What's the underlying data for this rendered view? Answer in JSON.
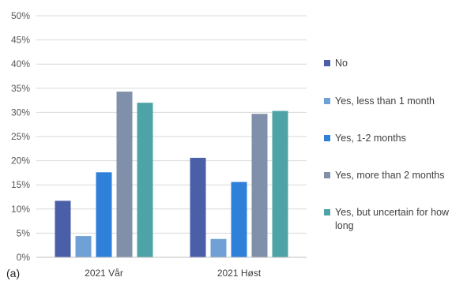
{
  "panel_label": "(a)",
  "colors": {
    "grid": "#d9d9d9",
    "axis_text": "#595959",
    "series": [
      "#4a5fa8",
      "#6fa1d6",
      "#2f80d8",
      "#8090aa",
      "#4ea3a6"
    ]
  },
  "chart_data": {
    "type": "bar",
    "categories": [
      "2021 Vår",
      "2021 Høst"
    ],
    "series": [
      {
        "name": "No",
        "values": [
          11.7,
          20.6
        ]
      },
      {
        "name": "Yes, less than 1 month",
        "values": [
          4.4,
          3.8
        ]
      },
      {
        "name": "Yes, 1-2 months",
        "values": [
          17.6,
          15.6
        ]
      },
      {
        "name": "Yes, more than 2 months",
        "values": [
          34.3,
          29.7
        ]
      },
      {
        "name": "Yes, but uncertain for how long",
        "values": [
          32.0,
          30.3
        ]
      }
    ],
    "ylim": [
      0,
      50
    ],
    "yticks": [
      "0%",
      "5%",
      "10%",
      "15%",
      "20%",
      "25%",
      "30%",
      "35%",
      "40%",
      "45%",
      "50%"
    ],
    "grid": true,
    "legend_position": "right"
  }
}
